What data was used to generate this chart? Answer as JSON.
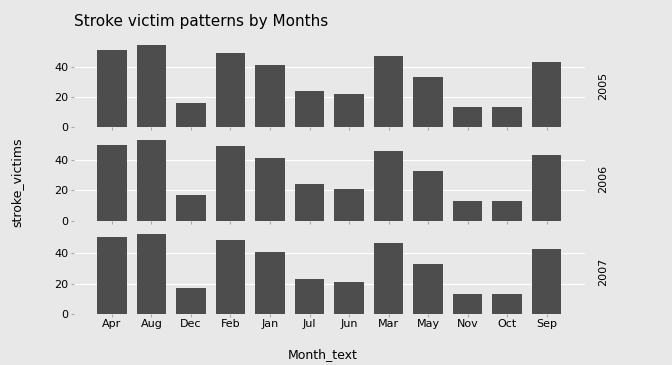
{
  "title": "Stroke victim patterns by Months",
  "xlabel": "Month_text",
  "ylabel": "stroke_victims",
  "months": [
    "Apr",
    "Aug",
    "Dec",
    "Feb",
    "Jan",
    "Jul",
    "Jun",
    "Mar",
    "May",
    "Nov",
    "Oct",
    "Sep"
  ],
  "years": [
    "2005",
    "2006",
    "2007"
  ],
  "values": {
    "2005": [
      51,
      54,
      16,
      49,
      41,
      24,
      22,
      47,
      33,
      13,
      13,
      43
    ],
    "2006": [
      50,
      53,
      17,
      49,
      41,
      24,
      21,
      46,
      33,
      13,
      13,
      43
    ],
    "2007": [
      51,
      53,
      17,
      49,
      41,
      23,
      21,
      47,
      33,
      13,
      13,
      43
    ]
  },
  "bar_color": "#4d4d4d",
  "bg_color": "#e8e8e8",
  "panel_bg": "#e8e8e8",
  "strip_bg": "#d3d3d3",
  "grid_color": "#ffffff",
  "title_fontsize": 11,
  "axis_label_fontsize": 9,
  "tick_fontsize": 8,
  "strip_fontsize": 8,
  "ylim": [
    0,
    55
  ]
}
